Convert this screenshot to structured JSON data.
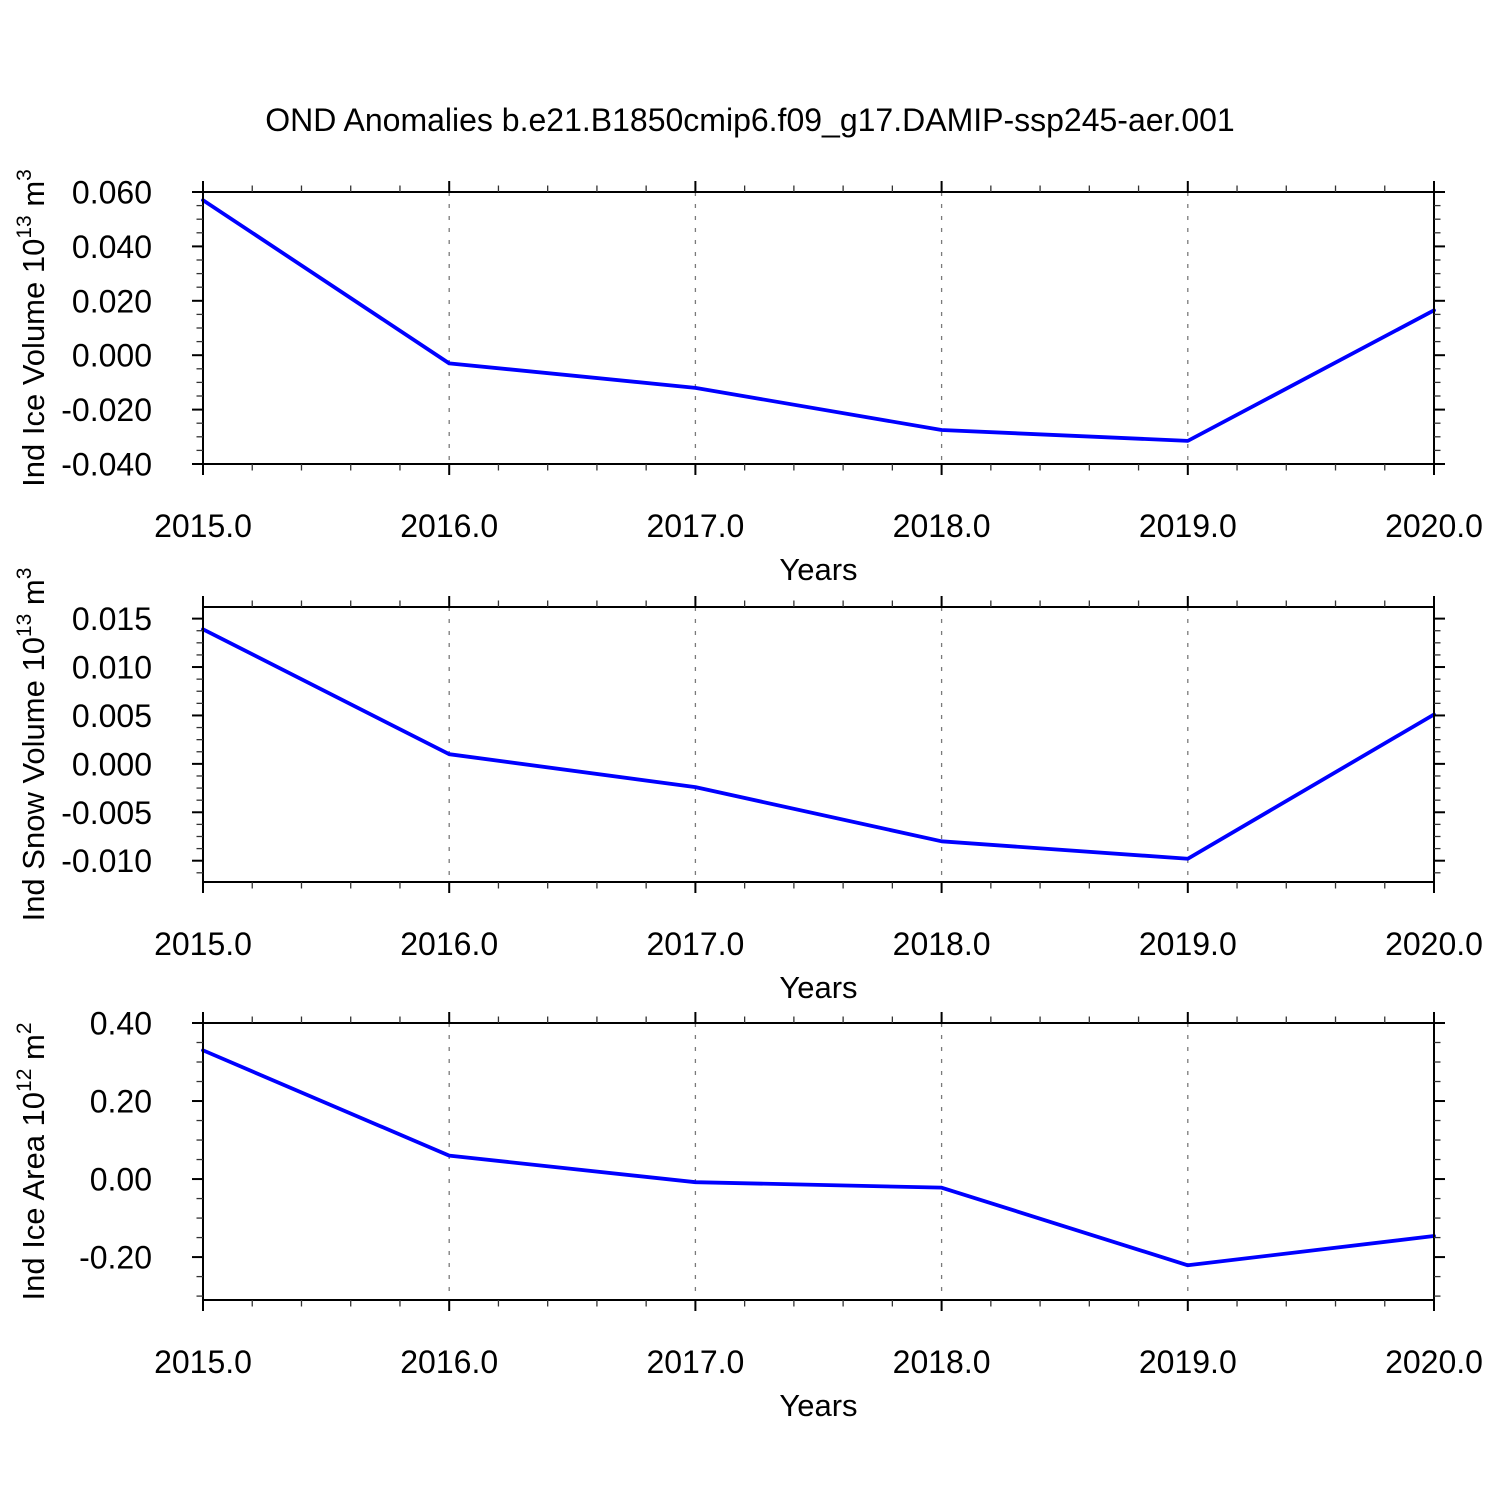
{
  "title": "OND Anomalies b.e21.B1850cmip6.f09_g17.DAMIP-ssp245-aer.001",
  "colors": {
    "line": "#0000FF",
    "grid": "#7A7A7A",
    "frame": "#000000",
    "minor_tick": "#333333"
  },
  "x_axis": {
    "label": "Years",
    "range": [
      2015,
      2020
    ],
    "tick_values": [
      2015,
      2016,
      2017,
      2018,
      2019,
      2020
    ],
    "tick_labels": [
      "2015.0",
      "2016.0",
      "2017.0",
      "2018.0",
      "2019.0",
      "2020.0"
    ],
    "minor_step": 0.2,
    "gridlines_at": [
      2016,
      2017,
      2018,
      2019
    ]
  },
  "chart_data": [
    {
      "type": "line",
      "name": "ind-ice-volume",
      "ylabel": "Ind Ice Volume 10^13 m^3",
      "ylabel_parts": [
        {
          "t": "Ind Ice Volume 10"
        },
        {
          "s": "13"
        },
        {
          "t": " m"
        },
        {
          "s": "3"
        }
      ],
      "xlabel": "Years",
      "x": [
        2015,
        2016,
        2017,
        2018,
        2019,
        2020
      ],
      "values": [
        0.057,
        -0.003,
        -0.012,
        -0.0275,
        -0.0315,
        0.0165
      ],
      "xlim": [
        2015,
        2020
      ],
      "ylim": [
        -0.04,
        0.06
      ],
      "ytick_values": [
        0.06,
        0.04,
        0.02,
        0.0,
        -0.02,
        -0.04
      ],
      "ytick_labels": [
        "0.060",
        "0.040",
        "0.020",
        "0.000",
        "-0.020",
        "-0.040"
      ],
      "y_minor_step": 0.005,
      "grid_on": true,
      "legend": "none"
    },
    {
      "type": "line",
      "name": "ind-snow-volume",
      "ylabel": "Ind Snow Volume 10^13 m^3",
      "ylabel_parts": [
        {
          "t": "Ind Snow Volume 10"
        },
        {
          "s": "13"
        },
        {
          "t": " m"
        },
        {
          "s": "3"
        }
      ],
      "xlabel": "Years",
      "x": [
        2015,
        2016,
        2017,
        2018,
        2019,
        2020
      ],
      "values": [
        0.0139,
        0.001,
        -0.0024,
        -0.008,
        -0.0098,
        0.0051
      ],
      "xlim": [
        2015,
        2020
      ],
      "ylim": [
        -0.0122,
        0.0162
      ],
      "ytick_values": [
        0.015,
        0.01,
        0.005,
        0.0,
        -0.005,
        -0.01
      ],
      "ytick_labels": [
        "0.015",
        "0.010",
        "0.005",
        "0.000",
        "-0.005",
        "-0.010"
      ],
      "y_minor_step": 0.00125,
      "grid_on": true,
      "legend": "none"
    },
    {
      "type": "line",
      "name": "ind-ice-area",
      "ylabel": "Ind Ice Area 10^12 m^2",
      "ylabel_parts": [
        {
          "t": "Ind Ice Area 10"
        },
        {
          "s": "12"
        },
        {
          "t": " m"
        },
        {
          "s": "2"
        }
      ],
      "xlabel": "Years",
      "x": [
        2015,
        2016,
        2017,
        2018,
        2019,
        2020
      ],
      "values": [
        0.33,
        0.06,
        -0.008,
        -0.022,
        -0.221,
        -0.146
      ],
      "xlim": [
        2015,
        2020
      ],
      "ylim": [
        -0.31,
        0.4
      ],
      "ytick_values": [
        0.4,
        0.2,
        0.0,
        -0.2
      ],
      "ytick_labels": [
        "0.40",
        "0.20",
        "0.00",
        "-0.20"
      ],
      "y_minor_step": 0.05,
      "grid_on": true,
      "legend": "none"
    }
  ]
}
